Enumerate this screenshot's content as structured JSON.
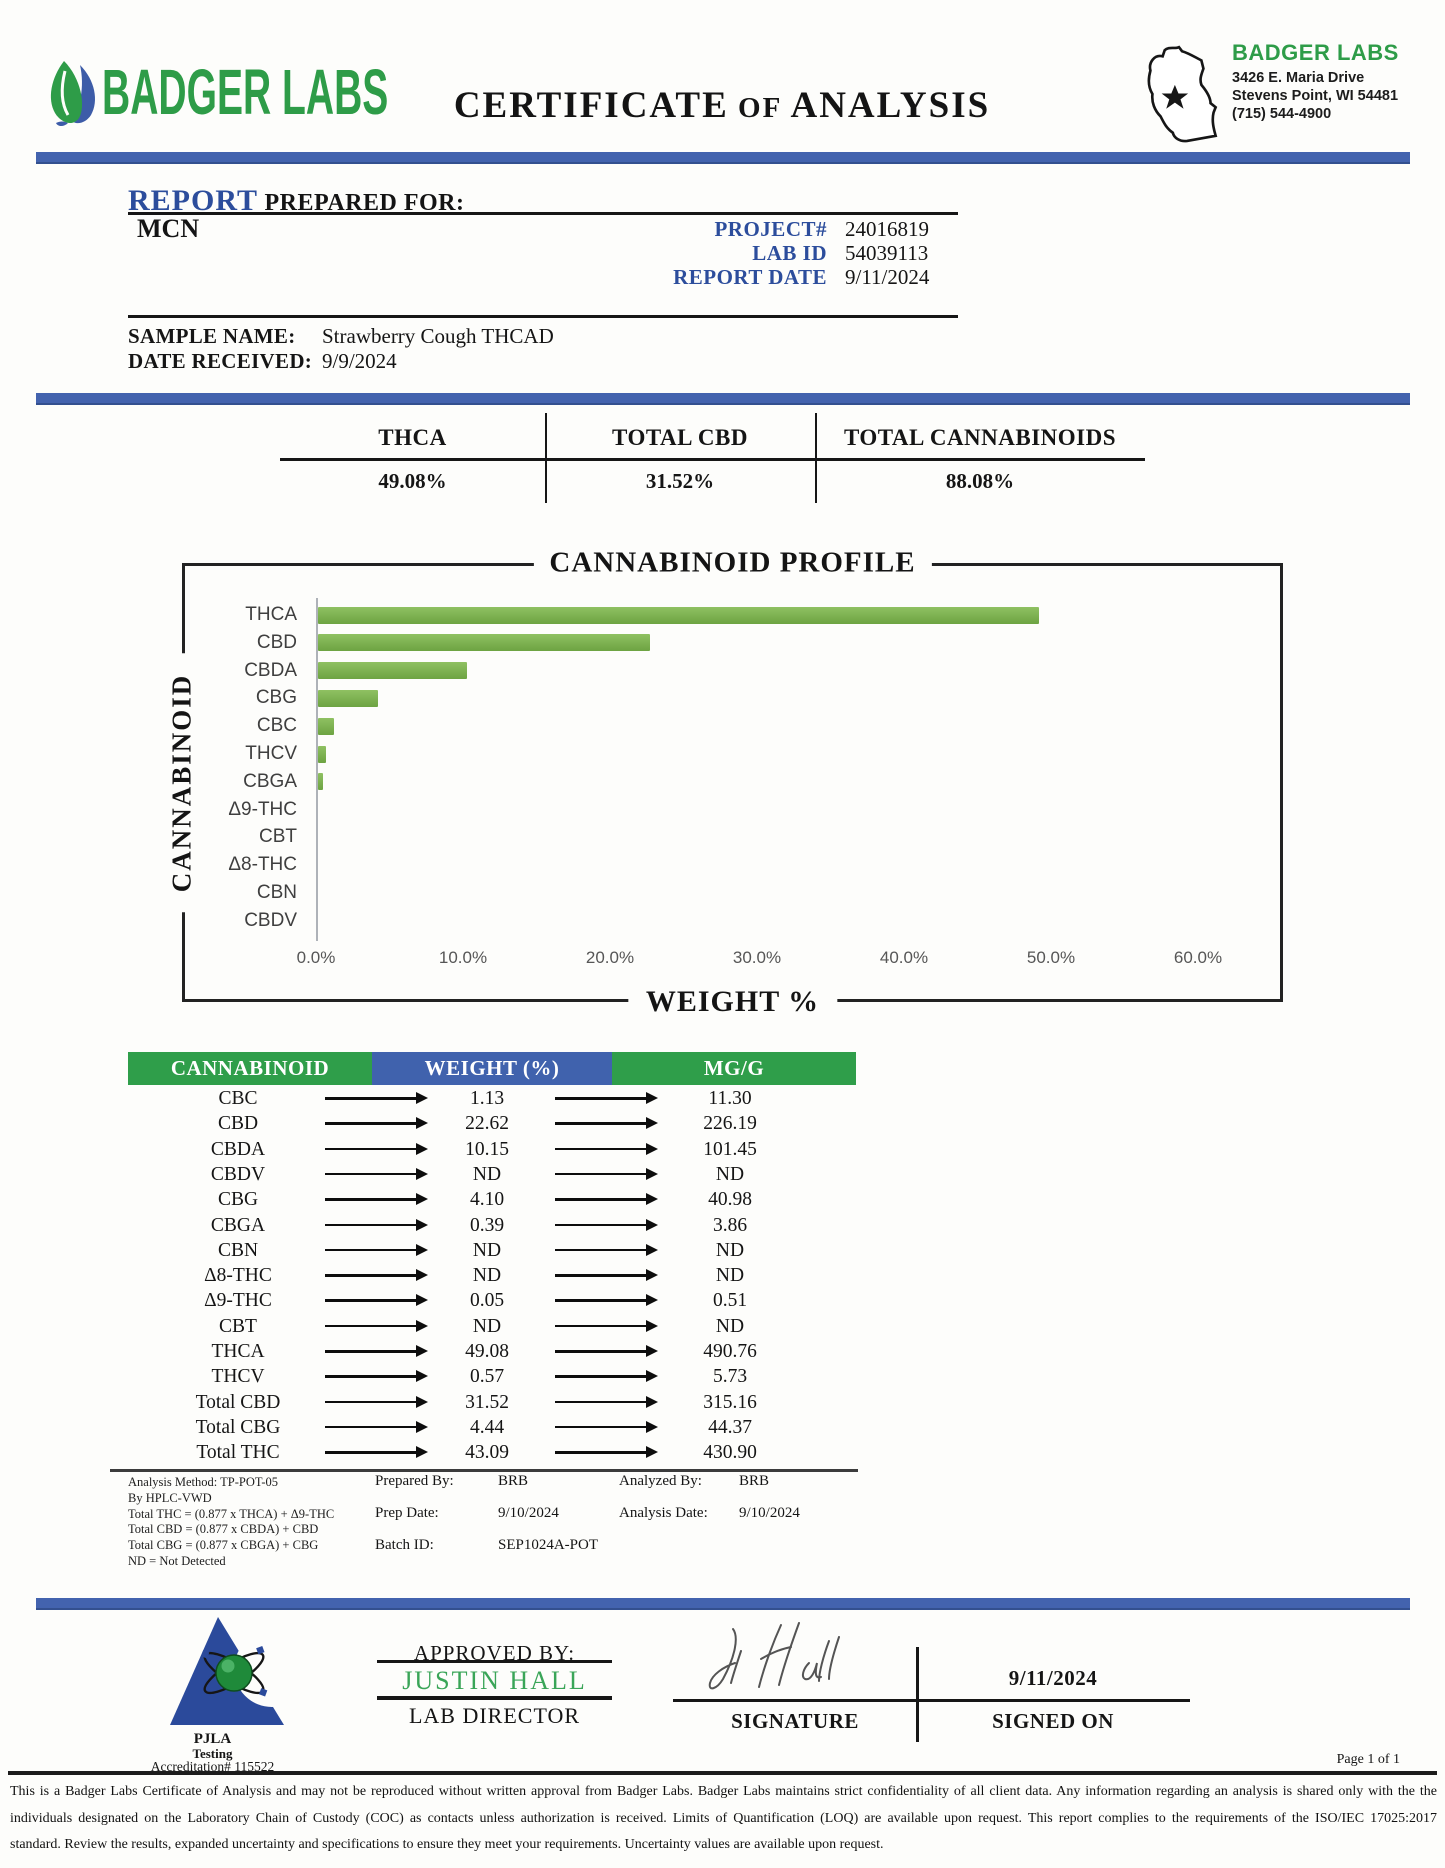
{
  "colors": {
    "blue_bar": "#4363ae",
    "label_blue": "#2c4d9c",
    "table_green": "#2f9e4a",
    "table_blue": "#4062ad",
    "bar_green": "#70ad47",
    "logo_green": "#2e9c48",
    "logo_blue": "#3d5ca8",
    "approver_green": "#3aa558"
  },
  "icons": {
    "left_logo": "badger-labs-leaf-logo",
    "state_logo": "wisconsin-state-star-map",
    "pjla_logo": "pjla-testing-atom-logo",
    "signature": "handwritten-signature"
  },
  "header": {
    "logo_text": "BADGER LABS",
    "title_word1": "CERTIFICATE",
    "title_word2": "OF",
    "title_word3": "ANALYSIS",
    "lab_name": "BADGER LABS",
    "address_line1": "3426 E. Maria Drive",
    "address_line2": "Stevens Point, WI 54481",
    "phone": "(715) 544-4900"
  },
  "report": {
    "label_blue": "REPORT",
    "label_rest": " PREPARED FOR:",
    "client": "MCN",
    "rows": [
      {
        "label": "PROJECT#",
        "value": "24016819"
      },
      {
        "label": "LAB ID",
        "value": "54039113"
      },
      {
        "label": "REPORT DATE",
        "value": "9/11/2024"
      }
    ],
    "sample_name_label": "SAMPLE NAME:",
    "sample_name": "Strawberry Cough THCAD",
    "date_received_label": "DATE RECEIVED:",
    "date_received": "9/9/2024"
  },
  "summary": {
    "columns": [
      {
        "label": "THCA",
        "value": "49.08%"
      },
      {
        "label": "TOTAL CBD",
        "value": "31.52%"
      },
      {
        "label": "TOTAL CANNABINOIDS",
        "value": "88.08%"
      }
    ]
  },
  "chart_data": {
    "type": "bar",
    "orientation": "horizontal",
    "title": "CANNABINOID PROFILE",
    "xlabel": "WEIGHT %",
    "ylabel": "CANNABINOID",
    "categories": [
      "THCA",
      "CBD",
      "CBDA",
      "CBG",
      "CBC",
      "THCV",
      "CBGA",
      "Δ9-THC",
      "CBT",
      "Δ8-THC",
      "CBN",
      "CBDV"
    ],
    "values": [
      49.08,
      22.62,
      10.15,
      4.1,
      1.13,
      0.57,
      0.39,
      0.05,
      0,
      0,
      0,
      0
    ],
    "xlim": [
      0,
      60
    ],
    "x_ticks": [
      "0.0%",
      "10.0%",
      "20.0%",
      "30.0%",
      "40.0%",
      "50.0%",
      "60.0%"
    ],
    "grid": false,
    "legend": false,
    "bar_color": "#70ad47"
  },
  "table": {
    "headers": [
      "CANNABINOID",
      "WEIGHT (%)",
      "MG/G"
    ],
    "rows": [
      {
        "name": "CBC",
        "weight": "1.13",
        "mgg": "11.30"
      },
      {
        "name": "CBD",
        "weight": "22.62",
        "mgg": "226.19"
      },
      {
        "name": "CBDA",
        "weight": "10.15",
        "mgg": "101.45"
      },
      {
        "name": "CBDV",
        "weight": "ND",
        "mgg": "ND"
      },
      {
        "name": "CBG",
        "weight": "4.10",
        "mgg": "40.98"
      },
      {
        "name": "CBGA",
        "weight": "0.39",
        "mgg": "3.86"
      },
      {
        "name": "CBN",
        "weight": "ND",
        "mgg": "ND"
      },
      {
        "name": "Δ8-THC",
        "weight": "ND",
        "mgg": "ND"
      },
      {
        "name": "Δ9-THC",
        "weight": "0.05",
        "mgg": "0.51"
      },
      {
        "name": "CBT",
        "weight": "ND",
        "mgg": "ND"
      },
      {
        "name": "THCA",
        "weight": "49.08",
        "mgg": "490.76"
      },
      {
        "name": "THCV",
        "weight": "0.57",
        "mgg": "5.73"
      },
      {
        "name": "Total CBD",
        "weight": "31.52",
        "mgg": "315.16"
      },
      {
        "name": "Total CBG",
        "weight": "4.44",
        "mgg": "44.37"
      },
      {
        "name": "Total THC",
        "weight": "43.09",
        "mgg": "430.90"
      }
    ]
  },
  "footnotes": {
    "left_lines": [
      "Analysis Method: TP-POT-05",
      "By HPLC-VWD",
      "Total THC = (0.877 x  THCA) + Δ9-THC",
      "Total CBD = (0.877 x  CBDA) + CBD",
      "Total CBG = (0.877 x  CBGA) + CBG",
      "ND = Not Detected"
    ],
    "middle_pairs": [
      {
        "label": "Prepared By:",
        "value": "BRB"
      },
      {
        "label": "Prep Date:",
        "value": "9/10/2024"
      },
      {
        "label": "Batch ID:",
        "value": "SEP1024A-POT"
      }
    ],
    "right_pairs": [
      {
        "label": "Analyzed By:",
        "value": "BRB"
      },
      {
        "label": "Analysis Date:",
        "value": "9/10/2024"
      }
    ]
  },
  "approval": {
    "approved_by_label": "APPROVED BY:",
    "approver_name": "JUSTIN HALL",
    "approver_title": "LAB DIRECTOR",
    "signature_label": "SIGNATURE",
    "signed_on_date": "9/11/2024",
    "signed_on_label": "SIGNED ON",
    "pjla_line1": "PJLA",
    "pjla_line2": "Testing",
    "accreditation": "Accreditation# 115522",
    "page_label": "Page 1 of 1"
  },
  "disclaimer_lines": [
    "This is a Badger Labs Certificate of Analysis and may not be reproduced without written approval from Badger Labs. Badger Labs maintains strict confidentiality of all client data. Any information regarding an analysis is shared only with the the",
    "individuals designated on the Laboratory Chain of Custody (COC) as contacts unless authorization is received. Limits of Quantification (LOQ) are available upon request. This report complies to the requirements of the ISO/IEC 17025:2017",
    "standard. Review the results, expanded uncertainty and specifications to ensure they meet your requirements. Uncertainty values are available upon request."
  ]
}
